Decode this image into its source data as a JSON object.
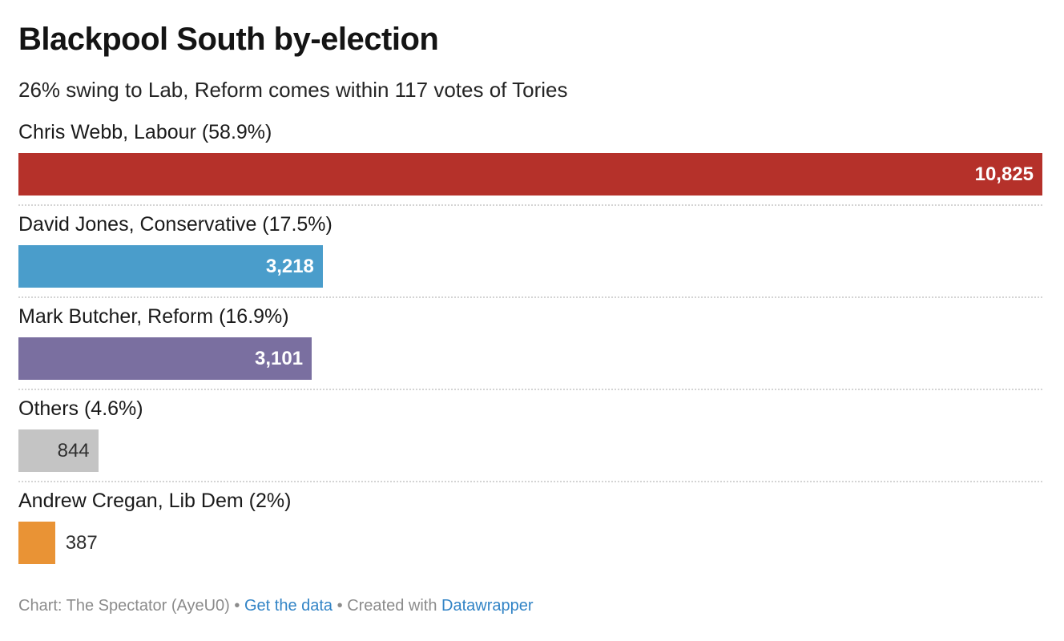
{
  "chart_data": {
    "type": "bar",
    "orientation": "horizontal",
    "title": "Blackpool South by-election",
    "subtitle": "26% swing to Lab, Reform comes within 117 votes of Tories",
    "xlim": [
      0,
      10825
    ],
    "grid": false,
    "categories": [
      "Chris Webb, Labour",
      "David Jones, Conservative",
      "Mark Butcher, Reform",
      "Others",
      "Andrew Cregan, Lib Dem"
    ],
    "values": [
      10825,
      3218,
      3101,
      844,
      387
    ],
    "percentages": [
      58.9,
      17.5,
      16.9,
      4.6,
      2.0
    ],
    "bars": [
      {
        "label": "Chris Webb, Labour (58.9%)",
        "value": 10825,
        "value_label": "10,825",
        "percent": 58.9,
        "color": "#b5312a",
        "value_color": "#ffffff",
        "value_position": "inside"
      },
      {
        "label": "David Jones, Conservative (17.5%)",
        "value": 3218,
        "value_label": "3,218",
        "percent": 17.5,
        "color": "#4a9dcb",
        "value_color": "#ffffff",
        "value_position": "inside"
      },
      {
        "label": "Mark Butcher, Reform (16.9%)",
        "value": 3101,
        "value_label": "3,101",
        "percent": 16.9,
        "color": "#7a6fa0",
        "value_color": "#ffffff",
        "value_position": "inside"
      },
      {
        "label": "Others (4.6%)",
        "value": 844,
        "value_label": "844",
        "percent": 4.6,
        "color": "#c4c4c4",
        "value_color": "#2f2f2f",
        "value_position": "inside"
      },
      {
        "label": "Andrew Cregan, Lib Dem (2%)",
        "value": 387,
        "value_label": "387",
        "percent": 2.0,
        "color": "#e99335",
        "value_color": "#2f2f2f",
        "value_position": "outside"
      }
    ]
  },
  "footer": {
    "attribution": "Chart: The Spectator (AyeU0)",
    "bullet": "•",
    "get_data_label": "Get the data",
    "created_with": "Created with",
    "datawrapper_label": "Datawrapper",
    "link_color": "#3284c6"
  }
}
